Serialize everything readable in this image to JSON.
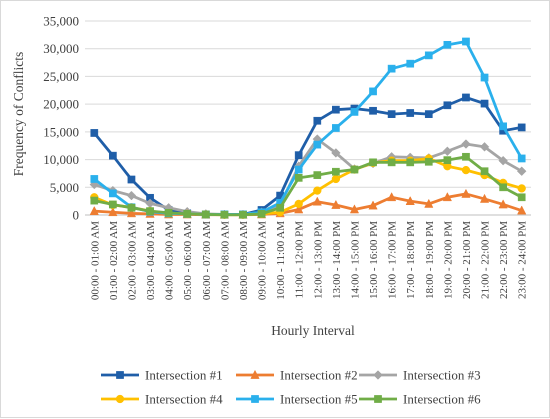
{
  "chart_data": {
    "type": "line",
    "xlabel": "Hourly Interval",
    "ylabel": "Frequency of Conflicts",
    "ylim": [
      0,
      35000
    ],
    "yticks": [
      "0",
      "5,000",
      "10,000",
      "15,000",
      "20,000",
      "25,000",
      "30,000",
      "35,000"
    ],
    "grid": true,
    "legend_position": "bottom",
    "categories": [
      "00:00 - 01:00 AM",
      "01:00 - 02:00 AM",
      "02:00 - 03:00 AM",
      "03:00 - 04:00 AM",
      "04:00 - 05:00 AM",
      "05:00 - 06:00 AM",
      "06:00 - 07:00 AM",
      "07:00 - 08:00 AM",
      "08:00 - 09:00 AM",
      "09:00 - 10:00 AM",
      "10:00 - 11:00 AM",
      "11:00 - 12:00 PM",
      "12:00 - 13:00 PM",
      "13:00 - 14:00 PM",
      "14:00 - 15:00 PM",
      "15:00 - 16:00 PM",
      "16:00 - 17:00 PM",
      "17:00 - 18:00 PM",
      "18:00 - 19:00 PM",
      "19:00 - 20:00 PM",
      "20:00 - 21:00 PM",
      "21:00 - 22:00 PM",
      "22:00 - 23:00 PM",
      "23:00 - 24:00 PM"
    ],
    "series": [
      {
        "name": "Intersection #1",
        "color": "#1f5ea8",
        "marker": "square",
        "values": [
          14800,
          10700,
          6400,
          3100,
          900,
          300,
          100,
          100,
          100,
          900,
          3500,
          10800,
          17000,
          19000,
          19200,
          18800,
          18200,
          18400,
          18200,
          19800,
          21200,
          20100,
          15200,
          15800
        ]
      },
      {
        "name": "Intersection #2",
        "color": "#ed7d31",
        "marker": "triangle",
        "values": [
          700,
          500,
          300,
          200,
          100,
          100,
          50,
          50,
          50,
          100,
          300,
          1000,
          2400,
          1800,
          1000,
          1700,
          3200,
          2500,
          2000,
          3200,
          3800,
          2900,
          1900,
          800
        ]
      },
      {
        "name": "Intersection #3",
        "color": "#a5a5a5",
        "marker": "diamond",
        "values": [
          5500,
          4400,
          3500,
          2100,
          1300,
          600,
          200,
          100,
          100,
          500,
          1800,
          8800,
          13700,
          11200,
          8300,
          9300,
          10500,
          10400,
          10300,
          11500,
          12800,
          12300,
          9800,
          7900
        ]
      },
      {
        "name": "Intersection #4",
        "color": "#ffc000",
        "marker": "circle",
        "values": [
          3200,
          1800,
          1400,
          700,
          300,
          200,
          100,
          50,
          50,
          200,
          500,
          2000,
          4400,
          6500,
          8200,
          9400,
          9800,
          9800,
          10200,
          8800,
          8100,
          7200,
          5800,
          4800
        ]
      },
      {
        "name": "Intersection #5",
        "color": "#2ab0ec",
        "marker": "square",
        "values": [
          6500,
          3900,
          1400,
          600,
          300,
          200,
          100,
          100,
          100,
          500,
          2200,
          8200,
          12700,
          15700,
          18600,
          22300,
          26400,
          27300,
          28800,
          30700,
          31300,
          24800,
          16000,
          10200
        ]
      },
      {
        "name": "Intersection #6",
        "color": "#70ad47",
        "marker": "square",
        "values": [
          2600,
          1900,
          1300,
          700,
          400,
          200,
          100,
          50,
          50,
          200,
          1300,
          6700,
          7200,
          7800,
          8200,
          9500,
          9500,
          9500,
          9600,
          9900,
          10500,
          7900,
          5000,
          3200
        ]
      }
    ]
  }
}
